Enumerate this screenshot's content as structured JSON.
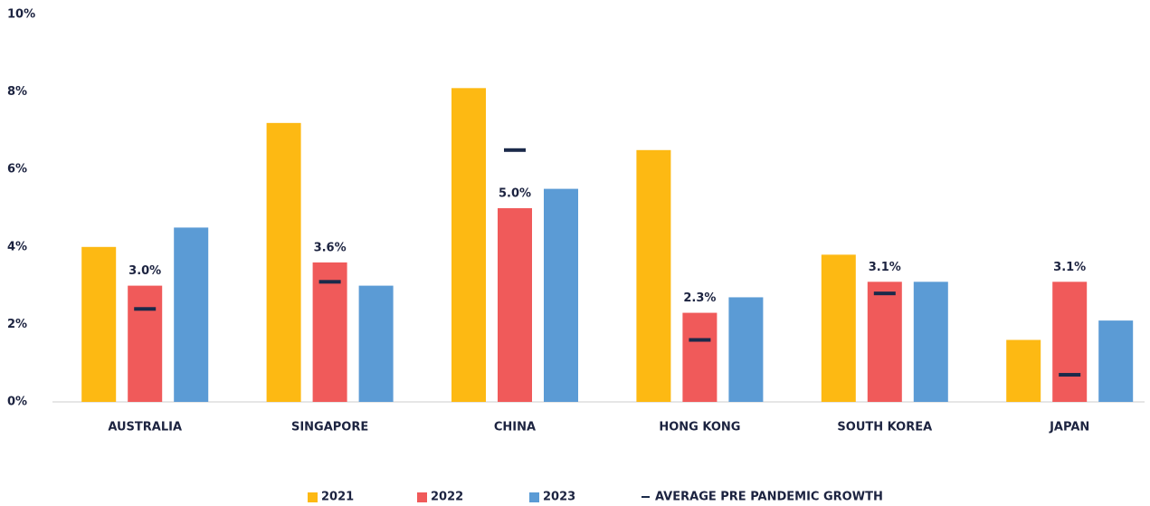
{
  "chart_data": {
    "type": "bar",
    "categories": [
      "AUSTRALIA",
      "SINGAPORE",
      "CHINA",
      "HONG KONG",
      "SOUTH KOREA",
      "JAPAN"
    ],
    "series": [
      {
        "name": "2021",
        "color": "#fdb913",
        "values": [
          4.0,
          7.2,
          8.1,
          6.5,
          3.8,
          1.6
        ]
      },
      {
        "name": "2022",
        "color": "#f05a5a",
        "values": [
          3.0,
          3.6,
          5.0,
          2.3,
          3.1,
          3.1
        ],
        "value_labels": [
          "3.0%",
          "3.6%",
          "5.0%",
          "2.3%",
          "3.1%",
          "3.1%"
        ]
      },
      {
        "name": "2023",
        "color": "#5b9bd5",
        "values": [
          4.5,
          3.0,
          5.5,
          2.7,
          3.1,
          2.1
        ]
      },
      {
        "name": "AVERAGE PRE PANDEMIC GROWTH",
        "color": "#1b2a4a",
        "style": "dash",
        "values": [
          2.4,
          3.1,
          6.5,
          1.6,
          2.8,
          0.7
        ]
      }
    ],
    "ylim": [
      0,
      10
    ],
    "yticks": [
      {
        "value": 0,
        "label": "0%"
      },
      {
        "value": 2,
        "label": "2%"
      },
      {
        "value": 4,
        "label": "4%"
      },
      {
        "value": 6,
        "label": "6%"
      },
      {
        "value": 8,
        "label": "8%"
      },
      {
        "value": 10,
        "label": "10%"
      }
    ],
    "grid": false,
    "legend": "bottom"
  }
}
